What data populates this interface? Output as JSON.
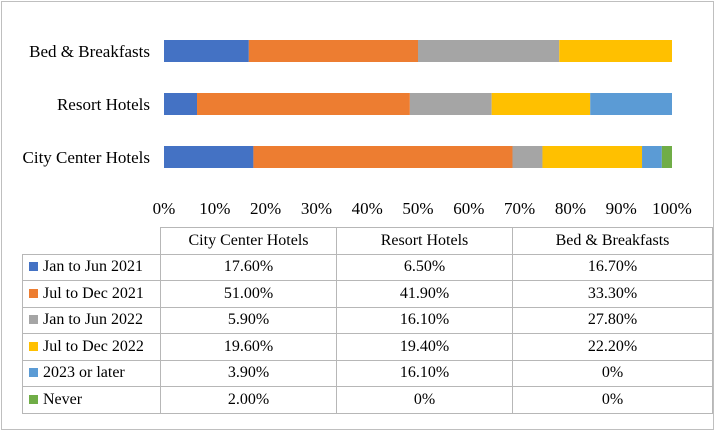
{
  "chart_data": {
    "type": "bar",
    "orientation": "horizontal",
    "stacked": "percent",
    "categories": [
      "City Center Hotels",
      "Resort Hotels",
      "Bed & Breakfasts"
    ],
    "series": [
      {
        "name": "Jan to Jun 2021",
        "color": "#4472c4",
        "values": [
          17.6,
          6.5,
          16.7
        ],
        "labels": [
          "17.60%",
          "6.50%",
          "16.70%"
        ]
      },
      {
        "name": "Jul to Dec 2021",
        "color": "#ed7d31",
        "values": [
          51.0,
          41.9,
          33.3
        ],
        "labels": [
          "51.00%",
          "41.90%",
          "33.30%"
        ]
      },
      {
        "name": "Jan to Jun 2022",
        "color": "#a5a5a5",
        "values": [
          5.9,
          16.1,
          27.8
        ],
        "labels": [
          "5.90%",
          "16.10%",
          "27.80%"
        ]
      },
      {
        "name": "Jul to Dec 2022",
        "color": "#ffc000",
        "values": [
          19.6,
          19.4,
          22.2
        ],
        "labels": [
          "19.60%",
          "19.40%",
          "22.20%"
        ]
      },
      {
        "name": "2023 or later",
        "color": "#5b9bd5",
        "values": [
          3.9,
          16.1,
          0
        ],
        "labels": [
          "3.90%",
          "16.10%",
          "0%"
        ]
      },
      {
        "name": "Never",
        "color": "#70ad47",
        "values": [
          2.0,
          0,
          0
        ],
        "labels": [
          "2.00%",
          "0%",
          "0%"
        ]
      }
    ],
    "xlim": [
      0,
      100
    ],
    "xticks": [
      "0%",
      "10%",
      "20%",
      "30%",
      "40%",
      "50%",
      "60%",
      "70%",
      "80%",
      "90%",
      "100%"
    ],
    "data_table": true,
    "legend": "data-table",
    "grid": false
  }
}
